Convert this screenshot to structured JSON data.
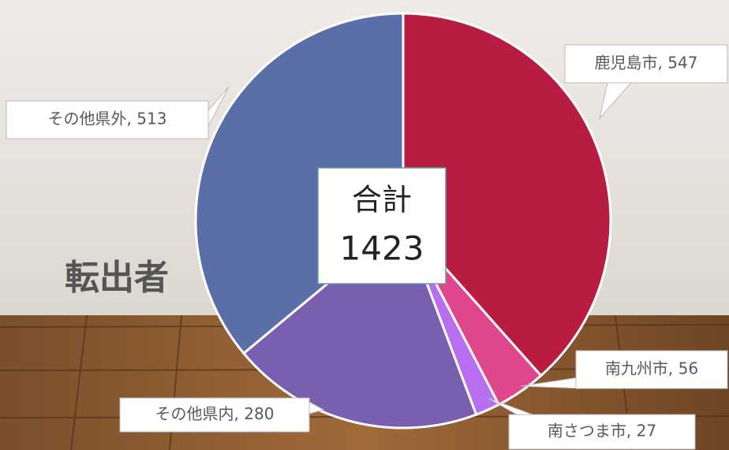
{
  "chart_data": {
    "type": "pie",
    "title": "転出者",
    "categories": [
      "鹿児島市",
      "南九州市",
      "南さつま市",
      "その他県内",
      "その他県外"
    ],
    "values": [
      547,
      56,
      27,
      280,
      513
    ],
    "value_labels": [
      "鹿児島市, 547",
      "南九州市, 56",
      "南さつま市, 27",
      "その他県内, 280",
      "その他県外, 513"
    ],
    "colors": [
      "#b81c40",
      "#e0468c",
      "#b86ef0",
      "#7a5fb0",
      "#5a6ea8"
    ],
    "total_label": "合計",
    "total": 1423
  }
}
